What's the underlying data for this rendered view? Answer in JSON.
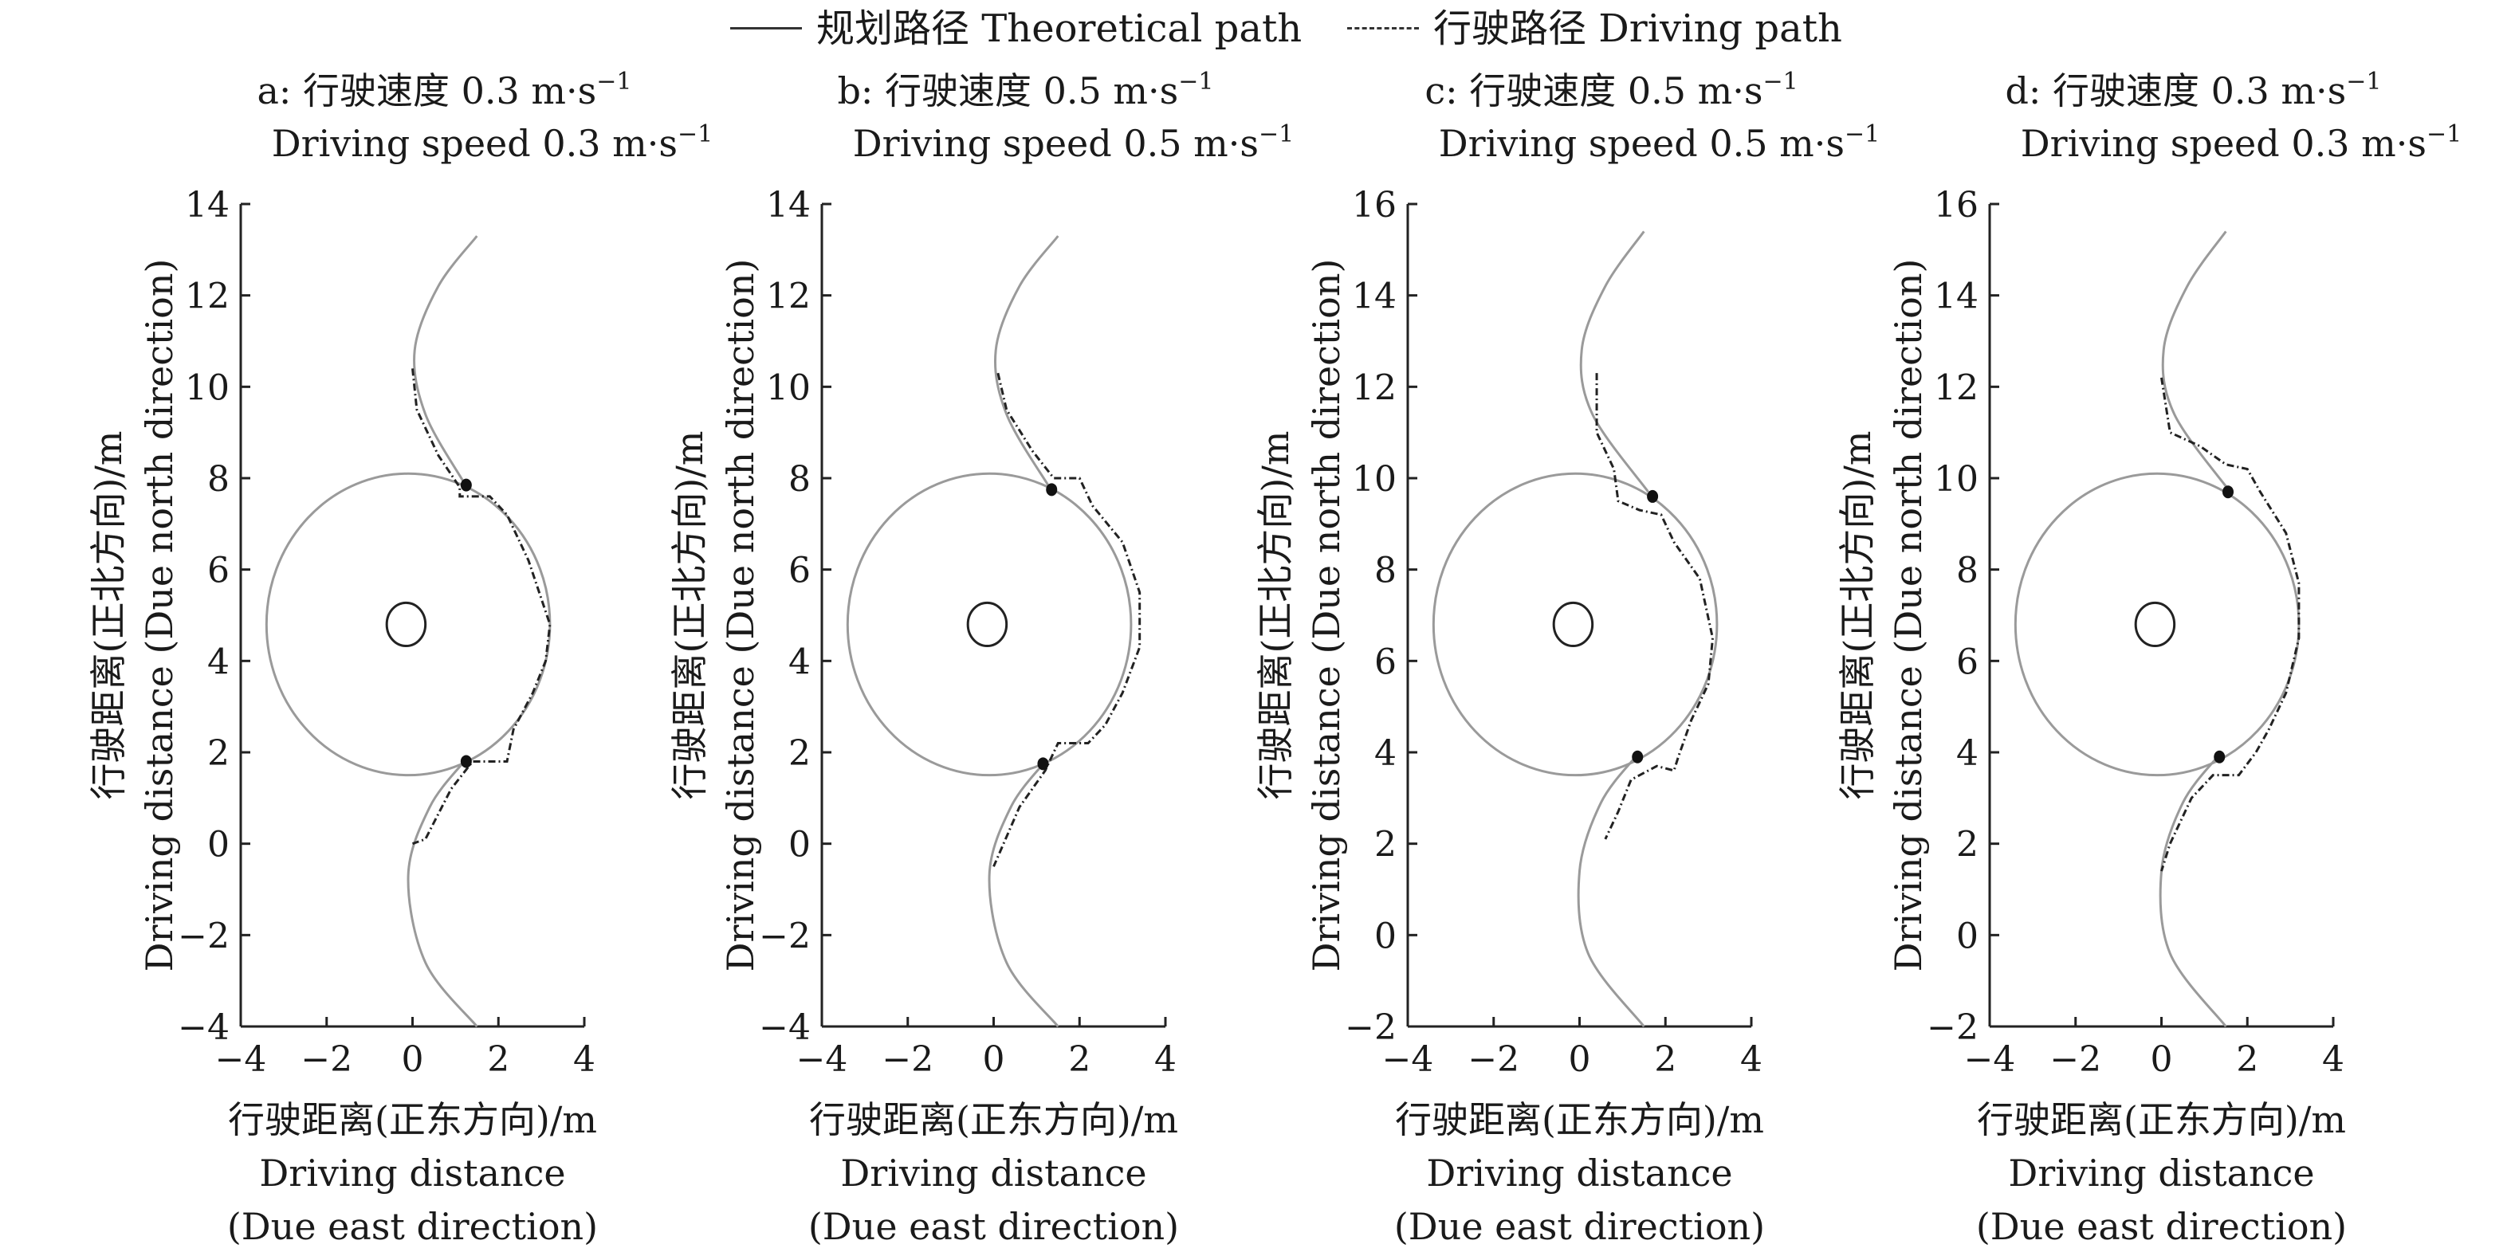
{
  "legend": {
    "theoretical_label": "规划路径 Theoretical path",
    "driving_label": "行驶路径 Driving path"
  },
  "x_label_lines": [
    "行驶距离(正东方向)/m",
    "Driving distance",
    "(Due east direction)"
  ],
  "y_label_lines": [
    "行驶距离(正北方向)/m",
    "Driving distance (Due north direction)"
  ],
  "colors": {
    "axis": "#222222",
    "theoretical": "#9a9a9a",
    "driving": "#222222",
    "marker": "#111111"
  },
  "chart_data": [
    {
      "type": "line",
      "title_line1": "a: 行驶速度 0.3 m·s",
      "title_line2": "Driving speed 0.3 m·s",
      "unit_sup": "−1",
      "xlim": [
        -4,
        4
      ],
      "ylim": [
        -4,
        14
      ],
      "xticks": [
        -4,
        -2,
        0,
        2,
        4
      ],
      "xtick_labels": [
        "−4",
        "−2",
        "0",
        "2",
        "4"
      ],
      "yticks": [
        -4,
        -2,
        0,
        2,
        4,
        6,
        8,
        10,
        12,
        14
      ],
      "ytick_labels": [
        "−4",
        "−2",
        "0",
        "2",
        "4",
        "6",
        "8",
        "10",
        "12",
        "14"
      ],
      "grid": false,
      "obstacle": {
        "center": [
          -0.15,
          4.8
        ],
        "rx": 0.45,
        "ry": 0.45
      },
      "theoretical_path": {
        "circle": {
          "center": [
            -0.1,
            4.8
          ],
          "r": 3.3
        },
        "upper_arc": [
          [
            1.5,
            13.3
          ],
          [
            0.6,
            12.2
          ],
          [
            0.05,
            10.8
          ],
          [
            0.3,
            9.4
          ],
          [
            1.2,
            7.9
          ]
        ],
        "lower_arc": [
          [
            1.2,
            1.8
          ],
          [
            0.4,
            0.8
          ],
          [
            -0.1,
            -0.7
          ],
          [
            0.3,
            -2.6
          ],
          [
            1.5,
            -4.0
          ]
        ]
      },
      "driving_path": [
        [
          0.0,
          10.4
        ],
        [
          0.1,
          9.5
        ],
        [
          0.6,
          8.5
        ],
        [
          1.1,
          7.8
        ],
        [
          1.1,
          7.6
        ],
        [
          1.8,
          7.6
        ],
        [
          2.2,
          7.2
        ],
        [
          2.7,
          6.2
        ],
        [
          3.2,
          4.8
        ],
        [
          3.1,
          4.0
        ],
        [
          2.8,
          3.3
        ],
        [
          2.35,
          2.5
        ],
        [
          2.2,
          1.8
        ],
        [
          1.4,
          1.8
        ],
        [
          0.9,
          1.2
        ],
        [
          0.3,
          0.1
        ],
        [
          0.0,
          0.0
        ]
      ],
      "waypoints": [
        [
          1.25,
          7.85
        ],
        [
          1.25,
          1.8
        ]
      ]
    },
    {
      "type": "line",
      "title_line1": "b: 行驶速度 0.5 m·s",
      "title_line2": "Driving speed 0.5 m·s",
      "unit_sup": "−1",
      "xlim": [
        -4,
        4
      ],
      "ylim": [
        -4,
        14
      ],
      "xticks": [
        -4,
        -2,
        0,
        2,
        4
      ],
      "xtick_labels": [
        "−4",
        "−2",
        "0",
        "2",
        "4"
      ],
      "yticks": [
        -4,
        -2,
        0,
        2,
        4,
        6,
        8,
        10,
        12,
        14
      ],
      "ytick_labels": [
        "−4",
        "−2",
        "0",
        "2",
        "4",
        "6",
        "8",
        "10",
        "12",
        "14"
      ],
      "grid": false,
      "obstacle": {
        "center": [
          -0.15,
          4.8
        ],
        "rx": 0.45,
        "ry": 0.45
      },
      "theoretical_path": {
        "circle": {
          "center": [
            -0.1,
            4.8
          ],
          "r": 3.3
        },
        "upper_arc": [
          [
            1.5,
            13.3
          ],
          [
            0.6,
            12.2
          ],
          [
            0.05,
            10.8
          ],
          [
            0.3,
            9.4
          ],
          [
            1.3,
            7.8
          ]
        ],
        "lower_arc": [
          [
            1.2,
            1.8
          ],
          [
            0.4,
            0.8
          ],
          [
            -0.1,
            -0.7
          ],
          [
            0.3,
            -2.6
          ],
          [
            1.5,
            -4.0
          ]
        ]
      },
      "driving_path": [
        [
          0.1,
          10.3
        ],
        [
          0.3,
          9.5
        ],
        [
          0.9,
          8.6
        ],
        [
          1.4,
          8.0
        ],
        [
          2.0,
          8.0
        ],
        [
          2.3,
          7.4
        ],
        [
          3.0,
          6.6
        ],
        [
          3.4,
          5.5
        ],
        [
          3.4,
          4.3
        ],
        [
          3.0,
          3.3
        ],
        [
          2.6,
          2.6
        ],
        [
          2.2,
          2.2
        ],
        [
          1.5,
          2.2
        ],
        [
          1.2,
          1.6
        ],
        [
          0.6,
          0.8
        ],
        [
          0.0,
          -0.5
        ]
      ],
      "waypoints": [
        [
          1.35,
          7.75
        ],
        [
          1.15,
          1.75
        ]
      ]
    },
    {
      "type": "line",
      "title_line1": "c: 行驶速度 0.5 m·s",
      "title_line2": "Driving speed 0.5 m·s",
      "unit_sup": "−1",
      "xlim": [
        -4,
        4
      ],
      "ylim": [
        -2,
        16
      ],
      "xticks": [
        -4,
        -2,
        0,
        2,
        4
      ],
      "xtick_labels": [
        "−4",
        "−2",
        "0",
        "2",
        "4"
      ],
      "yticks": [
        -2,
        0,
        2,
        4,
        6,
        8,
        10,
        12,
        14,
        16
      ],
      "ytick_labels": [
        "−2",
        "0",
        "2",
        "4",
        "6",
        "8",
        "10",
        "12",
        "14",
        "16"
      ],
      "grid": false,
      "obstacle": {
        "center": [
          -0.15,
          6.8
        ],
        "rx": 0.45,
        "ry": 0.45
      },
      "theoretical_path": {
        "circle": {
          "center": [
            -0.1,
            6.8
          ],
          "r": 3.3
        },
        "upper_arc": [
          [
            1.5,
            15.4
          ],
          [
            0.6,
            14.2
          ],
          [
            0.05,
            12.8
          ],
          [
            0.3,
            11.4
          ],
          [
            1.6,
            9.7
          ]
        ],
        "lower_arc": [
          [
            1.3,
            3.9
          ],
          [
            0.5,
            2.9
          ],
          [
            0.0,
            1.4
          ],
          [
            0.2,
            -0.4
          ],
          [
            1.5,
            -2.0
          ]
        ]
      },
      "driving_path": [
        [
          0.4,
          12.3
        ],
        [
          0.4,
          11.0
        ],
        [
          0.8,
          10.2
        ],
        [
          0.9,
          9.5
        ],
        [
          1.4,
          9.3
        ],
        [
          1.9,
          9.2
        ],
        [
          2.2,
          8.6
        ],
        [
          2.8,
          7.8
        ],
        [
          3.1,
          6.5
        ],
        [
          3.0,
          5.5
        ],
        [
          2.6,
          4.7
        ],
        [
          2.3,
          3.9
        ],
        [
          2.2,
          3.6
        ],
        [
          1.8,
          3.7
        ],
        [
          1.2,
          3.4
        ],
        [
          0.9,
          2.7
        ],
        [
          0.6,
          2.1
        ]
      ],
      "waypoints": [
        [
          1.7,
          9.6
        ],
        [
          1.35,
          3.9
        ]
      ]
    },
    {
      "type": "line",
      "title_line1": "d: 行驶速度 0.3 m·s",
      "title_line2": "Driving speed 0.3 m·s",
      "unit_sup": "−1",
      "xlim": [
        -4,
        4
      ],
      "ylim": [
        -2,
        16
      ],
      "xticks": [
        -4,
        -2,
        0,
        2,
        4
      ],
      "xtick_labels": [
        "−4",
        "−2",
        "0",
        "2",
        "4"
      ],
      "yticks": [
        -2,
        0,
        2,
        4,
        6,
        8,
        10,
        12,
        14,
        16
      ],
      "ytick_labels": [
        "−2",
        "0",
        "2",
        "4",
        "6",
        "8",
        "10",
        "12",
        "14",
        "16"
      ],
      "grid": false,
      "obstacle": {
        "center": [
          -0.15,
          6.8
        ],
        "rx": 0.45,
        "ry": 0.45
      },
      "theoretical_path": {
        "circle": {
          "center": [
            -0.1,
            6.8
          ],
          "r": 3.3
        },
        "upper_arc": [
          [
            1.5,
            15.4
          ],
          [
            0.6,
            14.2
          ],
          [
            0.05,
            12.8
          ],
          [
            0.3,
            11.4
          ],
          [
            1.6,
            9.7
          ]
        ],
        "lower_arc": [
          [
            1.3,
            3.9
          ],
          [
            0.5,
            2.9
          ],
          [
            0.0,
            1.4
          ],
          [
            0.2,
            -0.4
          ],
          [
            1.5,
            -2.0
          ]
        ]
      },
      "driving_path": [
        [
          0.0,
          12.2
        ],
        [
          0.2,
          11.0
        ],
        [
          0.9,
          10.7
        ],
        [
          1.5,
          10.3
        ],
        [
          2.0,
          10.2
        ],
        [
          2.3,
          9.7
        ],
        [
          2.9,
          8.8
        ],
        [
          3.2,
          7.7
        ],
        [
          3.2,
          6.5
        ],
        [
          2.9,
          5.3
        ],
        [
          2.5,
          4.5
        ],
        [
          2.2,
          4.0
        ],
        [
          1.8,
          3.5
        ],
        [
          1.2,
          3.5
        ],
        [
          0.7,
          3.0
        ],
        [
          0.2,
          2.0
        ],
        [
          0.0,
          1.4
        ]
      ],
      "waypoints": [
        [
          1.55,
          9.7
        ],
        [
          1.35,
          3.9
        ]
      ]
    }
  ]
}
